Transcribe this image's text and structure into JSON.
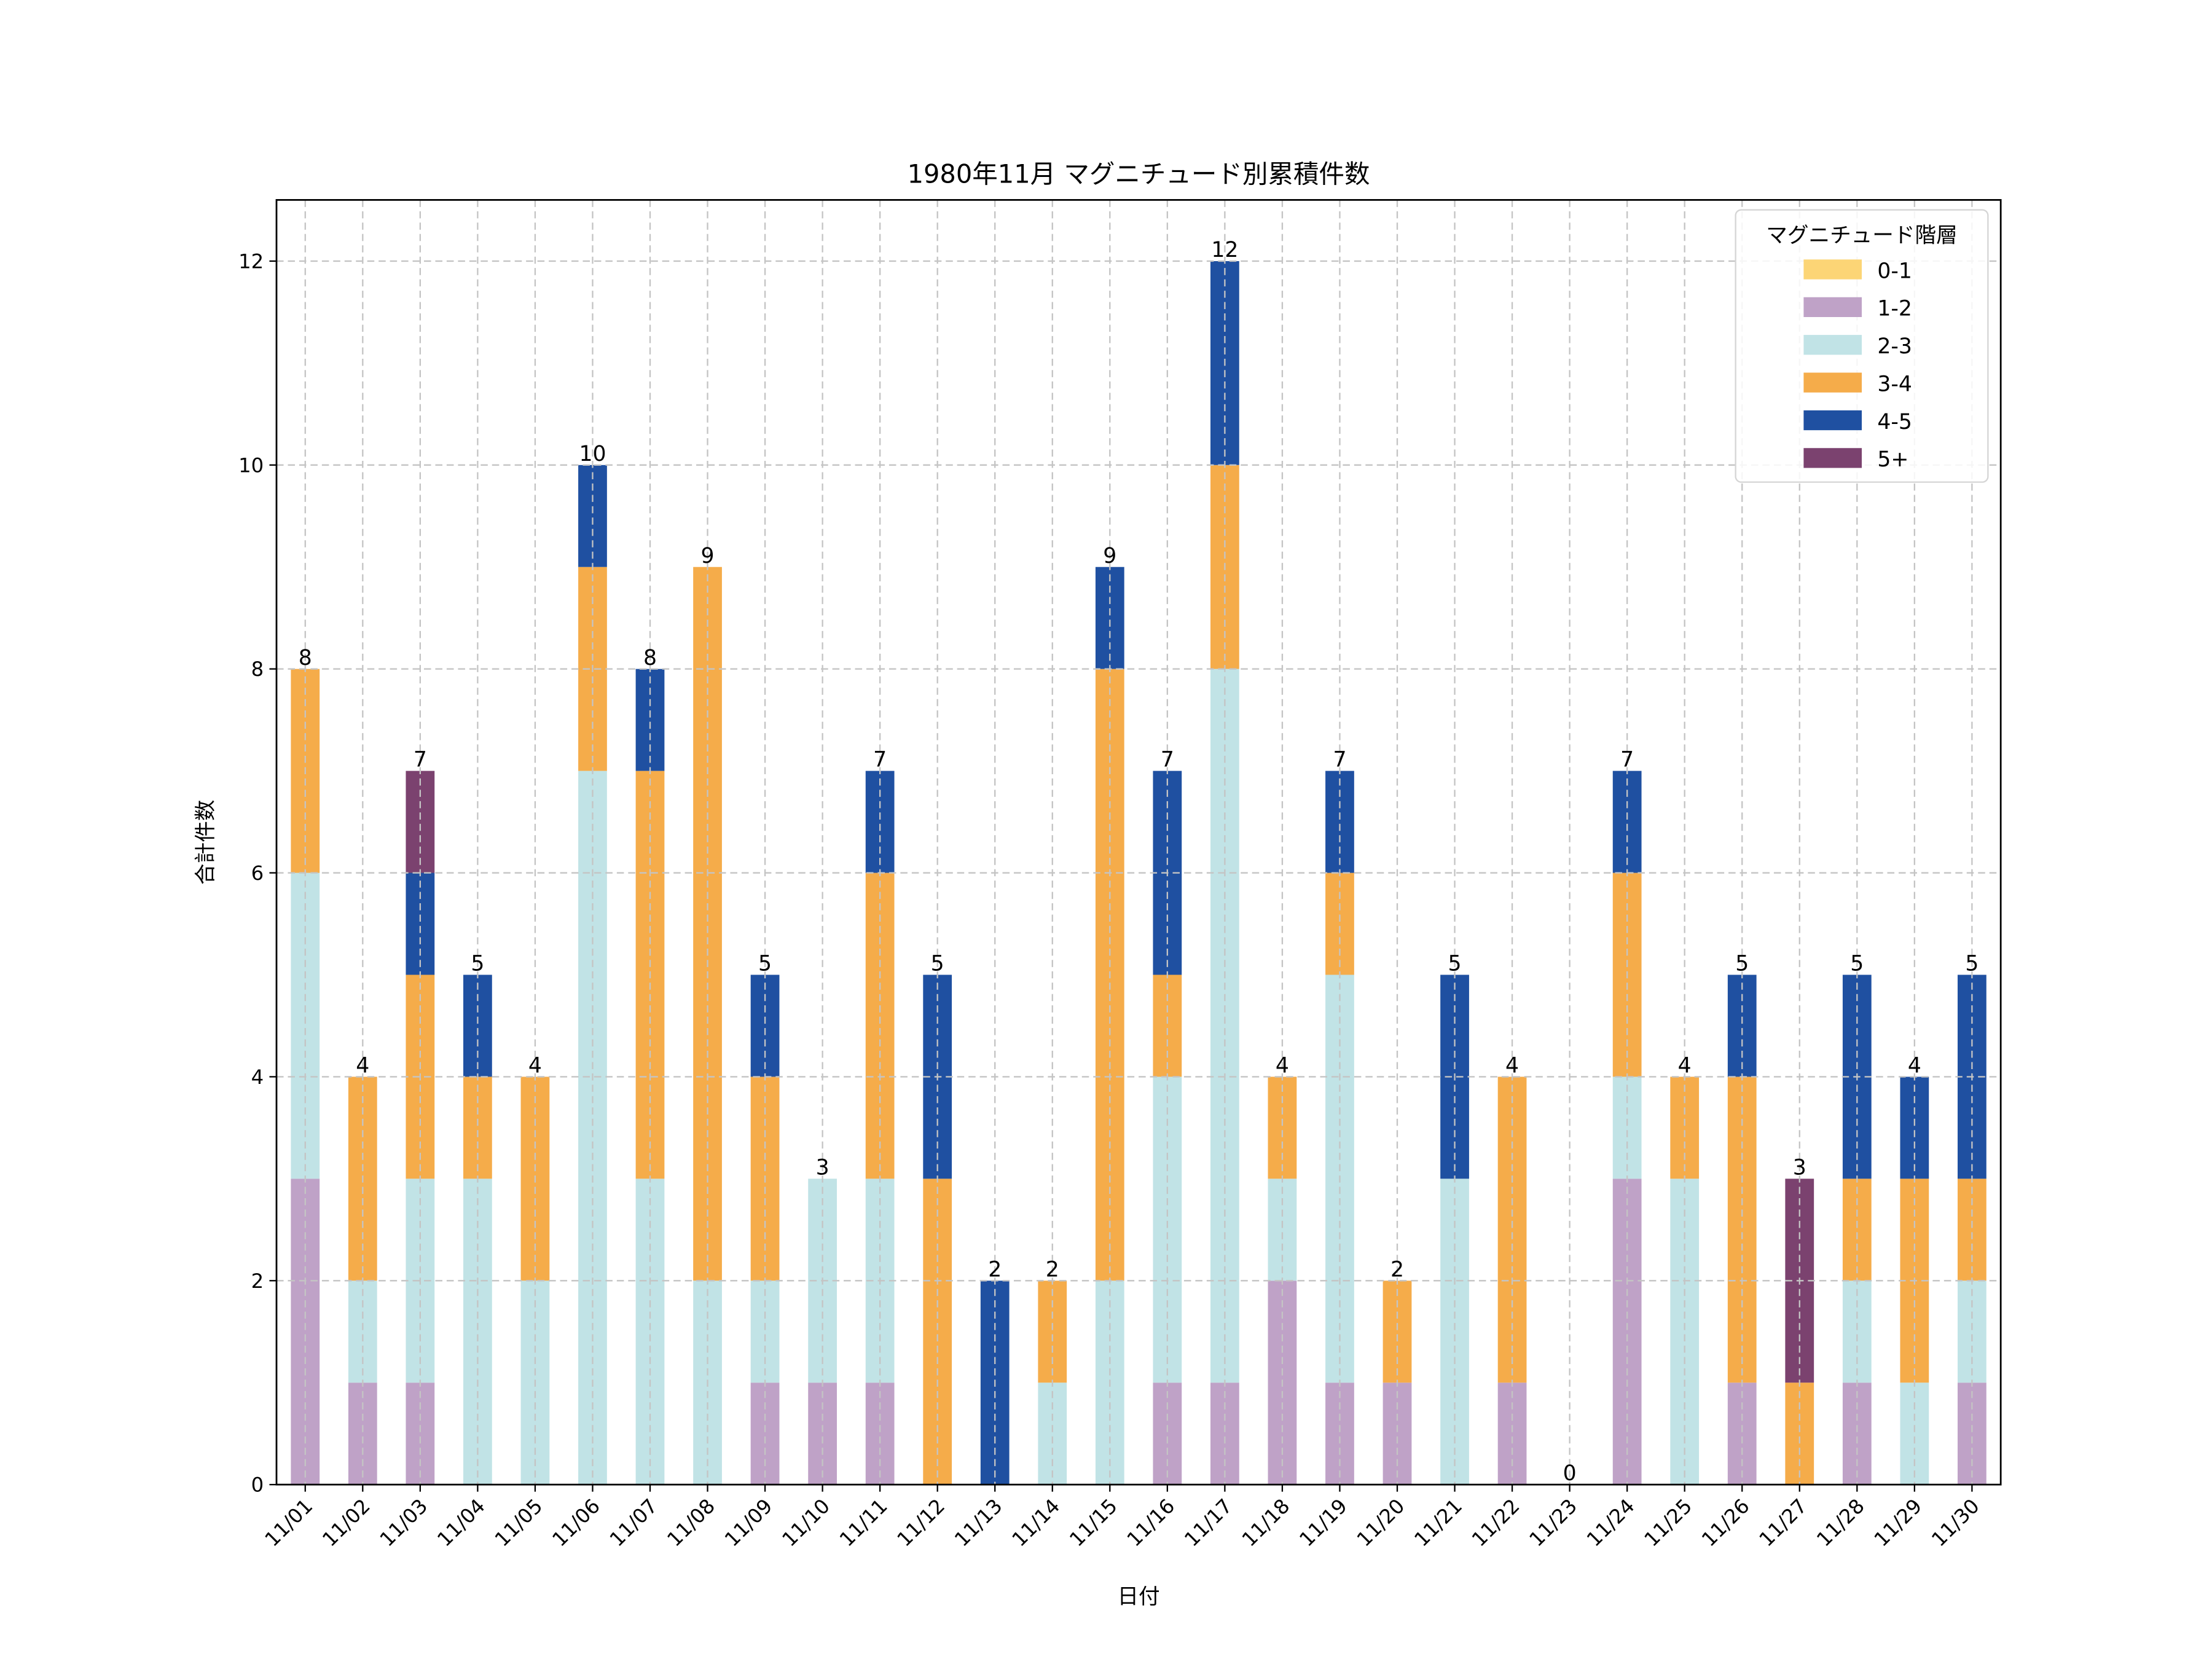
{
  "chart_data": {
    "type": "bar",
    "stacked": true,
    "title": "1980年11月 マグニチュード別累積件数",
    "xlabel": "日付",
    "ylabel": "合計件数",
    "ylim": [
      0,
      12.6
    ],
    "yticks": [
      0,
      2,
      4,
      6,
      8,
      10,
      12
    ],
    "grid": true,
    "legend": {
      "title": "マグニチュード階層",
      "placement": "top-right"
    },
    "categories": [
      "11/01",
      "11/02",
      "11/03",
      "11/04",
      "11/05",
      "11/06",
      "11/07",
      "11/08",
      "11/09",
      "11/10",
      "11/11",
      "11/12",
      "11/13",
      "11/14",
      "11/15",
      "11/16",
      "11/17",
      "11/18",
      "11/19",
      "11/20",
      "11/21",
      "11/22",
      "11/23",
      "11/24",
      "11/25",
      "11/26",
      "11/27",
      "11/28",
      "11/29",
      "11/30"
    ],
    "series": [
      {
        "name": "0-1",
        "color": "#fcd576",
        "values": [
          0,
          0,
          0,
          0,
          0,
          0,
          0,
          0,
          0,
          0,
          0,
          0,
          0,
          0,
          0,
          0,
          0,
          0,
          0,
          0,
          0,
          0,
          0,
          0,
          0,
          0,
          0,
          0,
          0,
          0
        ]
      },
      {
        "name": "1-2",
        "color": "#bfa2c7",
        "values": [
          3,
          1,
          1,
          0,
          0,
          0,
          0,
          0,
          1,
          1,
          1,
          0,
          0,
          0,
          0,
          1,
          1,
          2,
          1,
          1,
          0,
          1,
          0,
          3,
          0,
          1,
          0,
          1,
          0,
          1
        ]
      },
      {
        "name": "2-3",
        "color": "#c1e3e6",
        "values": [
          3,
          1,
          2,
          3,
          2,
          7,
          3,
          2,
          1,
          2,
          2,
          0,
          0,
          1,
          2,
          3,
          7,
          1,
          4,
          0,
          3,
          0,
          0,
          1,
          3,
          0,
          0,
          1,
          1,
          1
        ]
      },
      {
        "name": "3-4",
        "color": "#f5ac4a",
        "values": [
          2,
          2,
          2,
          1,
          2,
          2,
          4,
          7,
          2,
          0,
          3,
          3,
          0,
          1,
          6,
          1,
          2,
          1,
          1,
          1,
          0,
          3,
          0,
          2,
          1,
          3,
          1,
          1,
          2,
          1
        ]
      },
      {
        "name": "4-5",
        "color": "#1f50a1",
        "values": [
          0,
          0,
          1,
          1,
          0,
          1,
          1,
          0,
          1,
          0,
          1,
          2,
          2,
          0,
          1,
          2,
          2,
          0,
          1,
          0,
          2,
          0,
          0,
          1,
          0,
          1,
          0,
          2,
          1,
          2
        ]
      },
      {
        "name": "5+",
        "color": "#7b426f",
        "values": [
          0,
          0,
          1,
          0,
          0,
          0,
          0,
          0,
          0,
          0,
          0,
          0,
          0,
          0,
          0,
          0,
          0,
          0,
          0,
          0,
          0,
          0,
          0,
          0,
          0,
          0,
          2,
          0,
          0,
          0
        ]
      }
    ],
    "totals": [
      8,
      4,
      7,
      5,
      4,
      10,
      8,
      9,
      5,
      3,
      7,
      5,
      2,
      2,
      9,
      7,
      12,
      4,
      7,
      2,
      5,
      4,
      0,
      7,
      4,
      5,
      3,
      5,
      4,
      5
    ]
  }
}
